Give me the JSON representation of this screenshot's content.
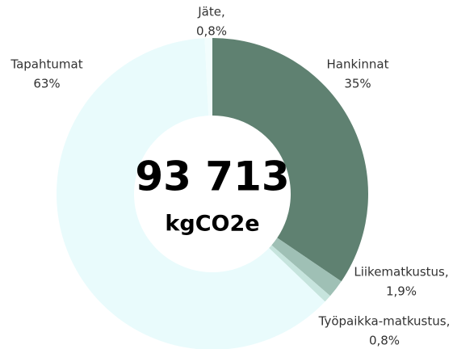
{
  "chart_data": {
    "type": "donut",
    "categories": [
      "Hankinnat",
      "Liikematkustus,",
      "Työpaikka-matkustus,",
      "Tapahtumat",
      "Jäte,"
    ],
    "values": [
      35,
      1.9,
      0.8,
      63,
      0.8
    ],
    "value_labels": [
      "35%",
      "1,9%",
      "0,8%",
      "63%",
      "0,8%"
    ],
    "colors": [
      "#5f8171",
      "#9fc0b5",
      "#c6e4dd",
      "#e9fbfc",
      "#f2fdfd"
    ],
    "center_value": "93 713",
    "center_unit": "kgCO2e"
  }
}
